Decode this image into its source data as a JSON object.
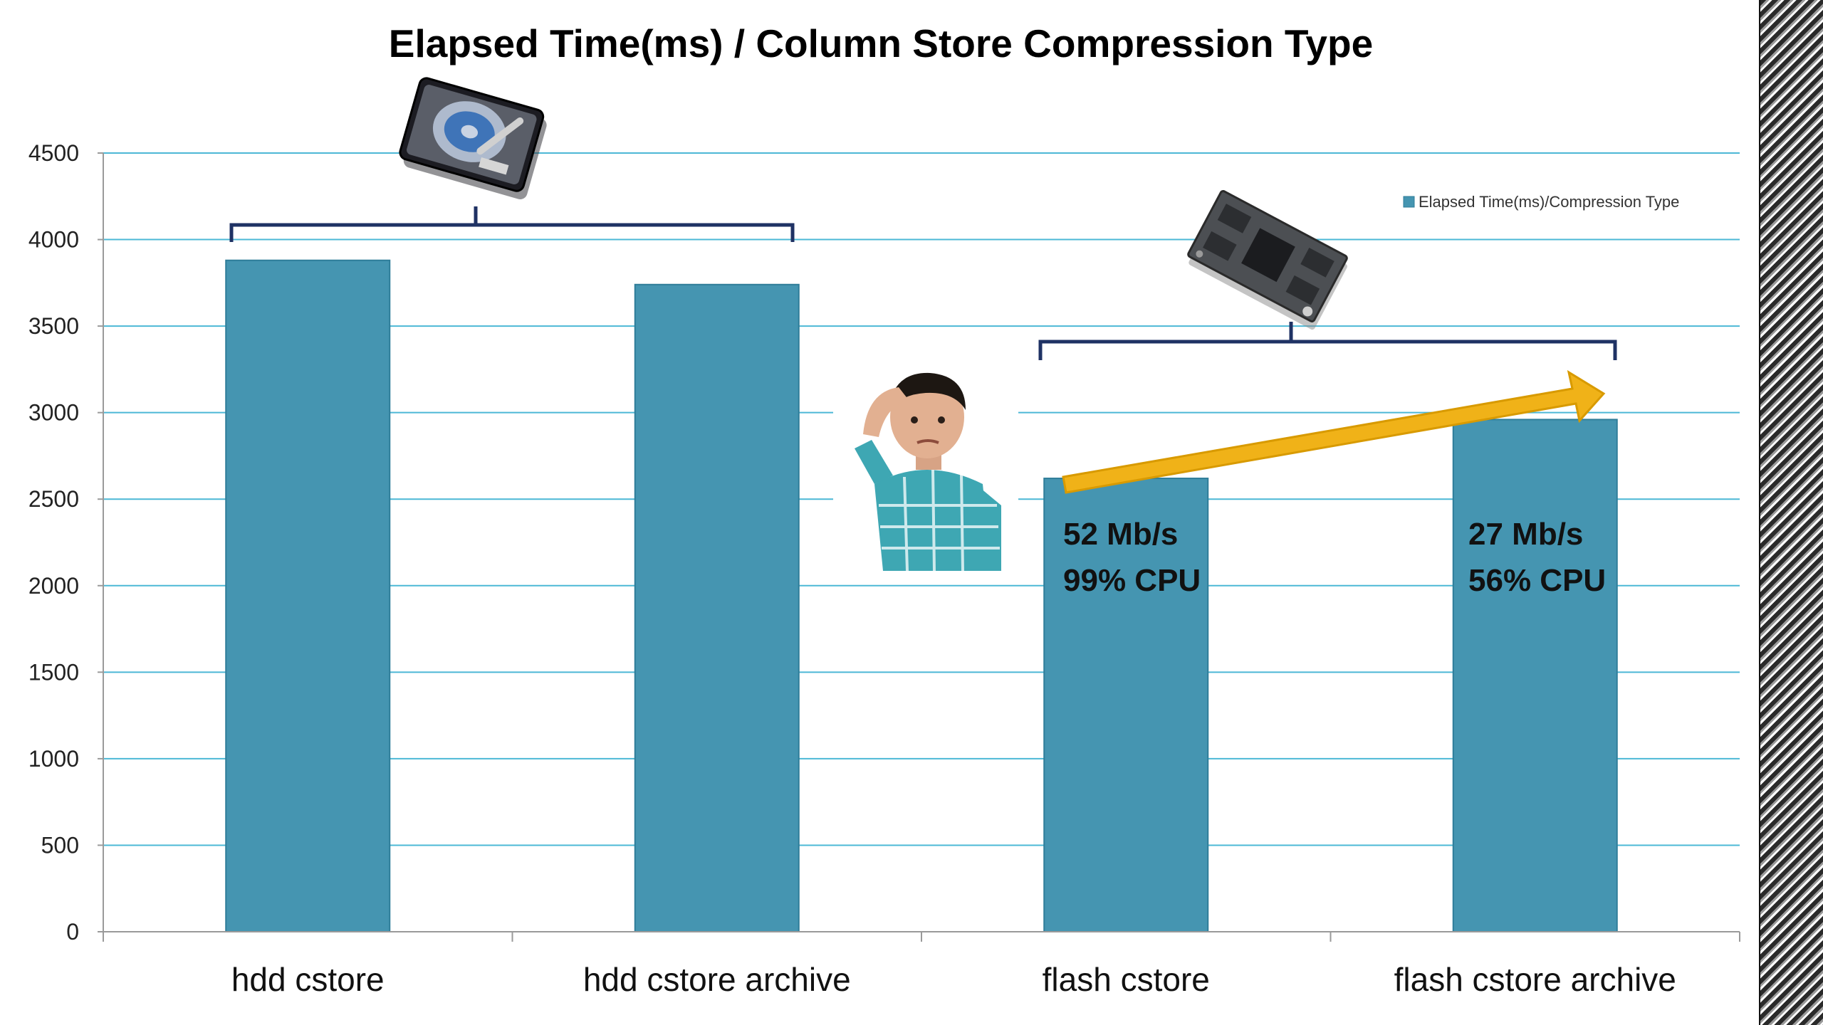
{
  "chart_data": {
    "type": "bar",
    "title": "Elapsed Time(ms) / Column Store Compression Type",
    "categories": [
      "hdd cstore",
      "hdd cstore archive",
      "flash cstore",
      "flash cstore archive"
    ],
    "series": [
      {
        "name": "Elapsed Time(ms)/Compression Type",
        "values": [
          3880,
          3740,
          2620,
          2960
        ]
      }
    ],
    "y_ticks": [
      "0",
      "500",
      "1000",
      "1500",
      "2000",
      "2500",
      "3000",
      "3500",
      "4000",
      "4500"
    ],
    "ylim": [
      0,
      4500
    ],
    "grid": true,
    "legend_position": "top-right",
    "xlabel": "",
    "ylabel": "",
    "annotations": [
      {
        "category": "flash cstore",
        "line1": "52 Mb/s",
        "line2": "99% CPU"
      },
      {
        "category": "flash cstore archive",
        "line1": "27 Mb/s",
        "line2": "56% CPU"
      }
    ],
    "colors": {
      "bar": "#4595b1",
      "bar_edge": "#2f7d99",
      "grid": "#4cb8d6",
      "bracket": "#1f3264",
      "arrow": "#f0b218",
      "arrow_edge": "#d89a00"
    }
  },
  "decorations": {
    "hdd_icon": "hard-drive-icon",
    "flash_icon": "flash-chip-icon",
    "person": "confused-boy-image"
  }
}
